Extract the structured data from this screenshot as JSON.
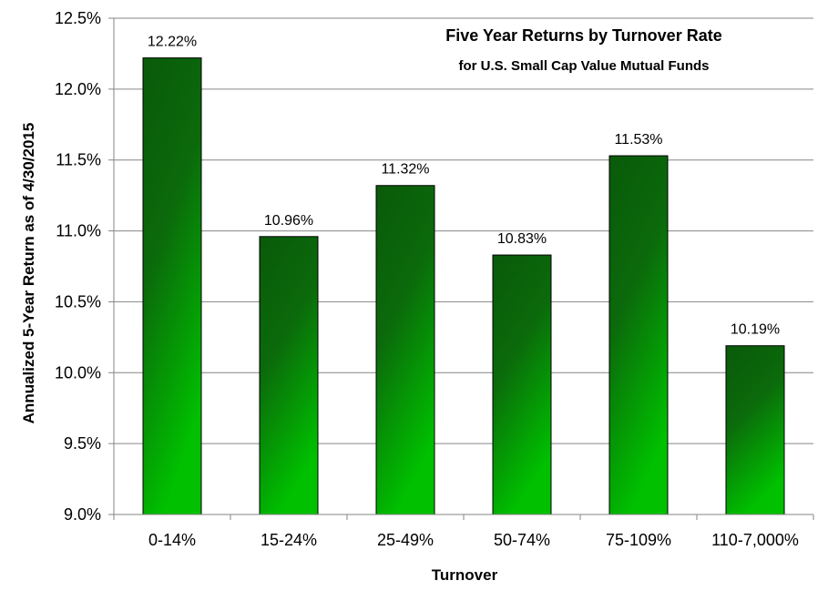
{
  "chart_data": {
    "type": "bar",
    "title": "Five Year Returns by Turnover Rate",
    "subtitle": "for U.S. Small Cap Value Mutual Funds",
    "xlabel": "Turnover",
    "ylabel": "Annualized 5-Year Return as of 4/30/2015",
    "categories": [
      "0-14%",
      "15-24%",
      "25-49%",
      "50-74%",
      "75-109%",
      "110-7,000%"
    ],
    "values": [
      12.22,
      10.96,
      11.32,
      10.83,
      11.53,
      10.19
    ],
    "data_labels": [
      "12.22%",
      "10.96%",
      "11.32%",
      "10.83%",
      "11.53%",
      "10.19%"
    ],
    "ylim": [
      9.0,
      12.5
    ],
    "yticks": [
      9.0,
      9.5,
      10.0,
      10.5,
      11.0,
      11.5,
      12.0,
      12.5
    ],
    "ytick_labels": [
      "9.0%",
      "9.5%",
      "10.0%",
      "10.5%",
      "11.0%",
      "11.5%",
      "12.0%",
      "12.5%"
    ],
    "grid": true,
    "legend": "none",
    "colors": {
      "bar_dark": "#0a5a0a",
      "bar_light": "#00c000",
      "grid": "#868686",
      "axis": "#868686"
    }
  }
}
